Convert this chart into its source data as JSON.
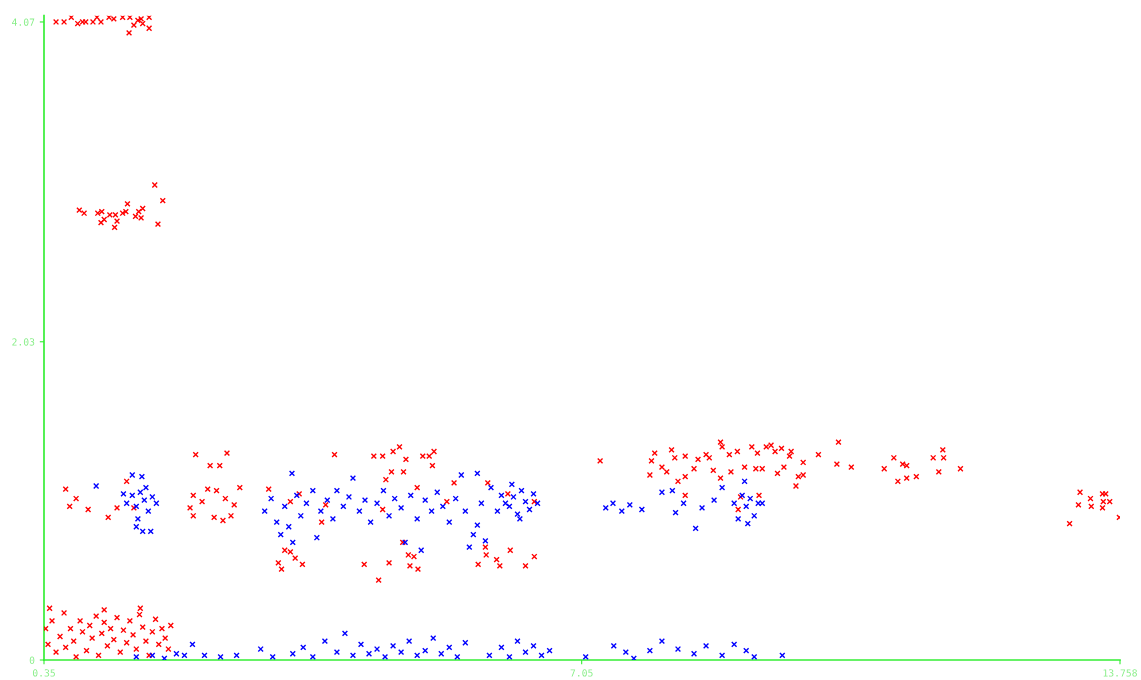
{
  "chart_data": {
    "type": "scatter",
    "marker": "cross",
    "grid": false,
    "legend": false,
    "xlim": [
      0.35,
      13.758
    ],
    "ylim": [
      0,
      4.11
    ],
    "xticks": [
      0.35,
      7.05,
      13.758
    ],
    "yticks": [
      0,
      2.03,
      4.07
    ],
    "series": [
      {
        "color": "#ff0000",
        "x": [
          0.5,
          0.6,
          0.69,
          0.77,
          0.83,
          0.87,
          0.96,
          1.01,
          1.06,
          1.16,
          1.22,
          1.33,
          1.42,
          1.41,
          1.47,
          1.52,
          1.56,
          1.58,
          1.66,
          1.66,
          0.79,
          0.85,
          1.02,
          1.06,
          1.07,
          1.1,
          1.17,
          1.23,
          1.24,
          1.26,
          1.33,
          1.37,
          1.39,
          1.49,
          1.53,
          1.56,
          1.58,
          1.73,
          1.83,
          1.77,
          0.62,
          0.75,
          0.67,
          0.9,
          1.15,
          1.26,
          1.38,
          1.47,
          2.24,
          2.42,
          2.54,
          2.63,
          2.17,
          2.21,
          2.21,
          2.32,
          2.39,
          2.47,
          2.5,
          2.58,
          2.61,
          2.68,
          2.72,
          2.79,
          3.15,
          3.35,
          3.42,
          3.27,
          3.31,
          3.57,
          3.48,
          3.42,
          3.53,
          3.81,
          3.97,
          3.86,
          4.34,
          4.52,
          4.46,
          4.57,
          4.7,
          4.78,
          4.86,
          4.83,
          4.68,
          4.61,
          4.65,
          4.89,
          4.91,
          5.01,
          4.96,
          4.82,
          5.0,
          5.07,
          5.15,
          5.21,
          5.19,
          4.57,
          5.37,
          5.46,
          5.76,
          5.86,
          5.99,
          6.03,
          6.16,
          6.35,
          6.46,
          5.88,
          6.13,
          6.46,
          5.85,
          7.28,
          7.96,
          7.92,
          7.9,
          8.05,
          8.17,
          8.21,
          8.11,
          8.25,
          8.34,
          8.34,
          8.45,
          8.5,
          8.6,
          8.64,
          8.69,
          8.78,
          8.8,
          8.78,
          8.89,
          8.91,
          8.99,
          9.08,
          9.17,
          9.24,
          9.22,
          9.3,
          9.35,
          9.41,
          9.46,
          9.54,
          9.49,
          9.57,
          9.64,
          9.66,
          9.72,
          9.75,
          9.81,
          9.81,
          10.0,
          10.23,
          10.25,
          10.41,
          10.82,
          10.94,
          10.99,
          11.05,
          11.1,
          11.1,
          11.22,
          11.43,
          11.5,
          11.55,
          11.56,
          11.77,
          8.34,
          9.26,
          9.03,
          9.0,
          13.13,
          13.24,
          13.26,
          13.39,
          13.4,
          13.54,
          13.58,
          13.63,
          13.55,
          13.54,
          13.75,
          0.37,
          0.4,
          0.45,
          0.5,
          0.55,
          0.6,
          0.62,
          0.68,
          0.72,
          0.75,
          0.8,
          0.83,
          0.88,
          0.92,
          0.95,
          1.0,
          1.03,
          1.07,
          1.1,
          1.14,
          1.18,
          1.22,
          1.26,
          1.3,
          1.34,
          1.38,
          1.42,
          1.46,
          1.5,
          1.54,
          1.58,
          1.62,
          1.66,
          1.7,
          1.74,
          1.78,
          1.82,
          1.86,
          1.9,
          1.93,
          0.42,
          1.1,
          1.55
        ],
        "values": [
          4.07,
          4.07,
          4.1,
          4.06,
          4.07,
          4.07,
          4.07,
          4.1,
          4.07,
          4.1,
          4.09,
          4.1,
          4.1,
          4.0,
          4.05,
          4.08,
          4.09,
          4.06,
          4.1,
          4.03,
          2.87,
          2.85,
          2.85,
          2.79,
          2.86,
          2.81,
          2.84,
          2.76,
          2.84,
          2.8,
          2.85,
          2.86,
          2.91,
          2.83,
          2.86,
          2.82,
          2.88,
          3.03,
          2.93,
          2.78,
          1.09,
          1.03,
          0.98,
          0.96,
          0.91,
          0.97,
          1.14,
          0.97,
          1.31,
          1.24,
          1.24,
          1.32,
          0.97,
          0.92,
          1.05,
          1.01,
          1.09,
          0.91,
          1.08,
          0.89,
          1.03,
          0.92,
          0.99,
          1.1,
          1.09,
          0.7,
          0.69,
          0.62,
          0.58,
          0.61,
          0.65,
          1.01,
          1.06,
          0.88,
          1.31,
          0.99,
          0.61,
          0.51,
          1.3,
          1.3,
          1.33,
          1.36,
          1.28,
          1.2,
          1.2,
          1.15,
          0.62,
          0.67,
          0.6,
          0.58,
          0.66,
          0.75,
          1.1,
          1.3,
          1.3,
          1.33,
          1.24,
          0.96,
          1.01,
          1.13,
          0.61,
          0.67,
          0.64,
          0.6,
          0.7,
          0.6,
          0.66,
          1.13,
          1.06,
          1.01,
          0.72,
          1.27,
          1.32,
          1.27,
          1.18,
          1.23,
          1.34,
          1.29,
          1.2,
          1.14,
          1.3,
          1.17,
          1.22,
          1.28,
          1.31,
          1.29,
          1.21,
          1.39,
          1.36,
          1.16,
          1.31,
          1.2,
          1.33,
          1.23,
          1.36,
          1.32,
          1.22,
          1.22,
          1.36,
          1.37,
          1.33,
          1.35,
          1.19,
          1.23,
          1.3,
          1.33,
          1.11,
          1.17,
          1.26,
          1.18,
          1.31,
          1.25,
          1.39,
          1.23,
          1.22,
          1.29,
          1.14,
          1.25,
          1.24,
          1.16,
          1.17,
          1.29,
          1.2,
          1.34,
          1.29,
          1.22,
          1.05,
          1.05,
          1.04,
          0.96,
          0.87,
          0.99,
          1.07,
          1.03,
          0.98,
          1.06,
          1.06,
          1.01,
          1.01,
          0.97,
          0.91,
          0.2,
          0.1,
          0.25,
          0.05,
          0.15,
          0.3,
          0.08,
          0.2,
          0.12,
          0.02,
          0.25,
          0.18,
          0.06,
          0.22,
          0.14,
          0.28,
          0.03,
          0.17,
          0.24,
          0.09,
          0.2,
          0.13,
          0.27,
          0.05,
          0.19,
          0.11,
          0.25,
          0.16,
          0.07,
          0.29,
          0.21,
          0.12,
          0.03,
          0.18,
          0.26,
          0.1,
          0.2,
          0.14,
          0.07,
          0.22,
          0.33,
          0.32,
          0.33
        ]
      },
      {
        "color": "#0000ff",
        "x": [
          1.38,
          1.45,
          1.5,
          1.55,
          1.6,
          1.65,
          1.7,
          1.52,
          1.58,
          1.45,
          1.75,
          1.34,
          1.62,
          1.5,
          1.0,
          1.57,
          1.68,
          3.1,
          3.18,
          3.25,
          3.3,
          3.35,
          3.4,
          3.45,
          3.5,
          3.55,
          3.62,
          3.7,
          3.75,
          3.8,
          3.88,
          3.95,
          4.0,
          4.08,
          4.15,
          4.2,
          4.28,
          4.35,
          4.42,
          4.5,
          4.58,
          4.65,
          4.72,
          4.8,
          4.85,
          4.92,
          5.0,
          5.05,
          5.1,
          5.18,
          5.25,
          5.32,
          5.4,
          5.48,
          5.55,
          5.6,
          5.65,
          5.7,
          5.75,
          5.8,
          5.85,
          5.92,
          6.0,
          6.05,
          6.1,
          6.15,
          6.2,
          6.25,
          6.3,
          6.35,
          6.4,
          6.45,
          6.5,
          6.18,
          6.28,
          3.44,
          5.75,
          7.35,
          7.44,
          7.55,
          7.65,
          7.8,
          8.05,
          8.18,
          8.22,
          8.32,
          8.47,
          8.55,
          8.7,
          8.8,
          8.95,
          9.0,
          9.05,
          9.1,
          9.15,
          9.2,
          9.25,
          9.08,
          9.3,
          9.12,
          1.5,
          1.7,
          1.85,
          2.0,
          2.1,
          2.2,
          2.35,
          2.55,
          2.75,
          3.05,
          3.2,
          3.45,
          3.58,
          3.7,
          3.85,
          4.0,
          4.1,
          4.2,
          4.3,
          4.4,
          4.5,
          4.6,
          4.7,
          4.8,
          4.9,
          5.0,
          5.1,
          5.2,
          5.3,
          5.4,
          5.5,
          5.6,
          5.9,
          6.05,
          6.15,
          6.25,
          6.35,
          6.45,
          6.55,
          6.65,
          7.1,
          7.45,
          7.6,
          7.7,
          7.9,
          8.05,
          8.25,
          8.45,
          8.6,
          8.8,
          8.95,
          9.1,
          9.2,
          9.55
        ],
        "values": [
          1.0,
          1.05,
          0.98,
          1.07,
          1.02,
          0.95,
          1.04,
          0.9,
          0.82,
          1.18,
          1.0,
          1.06,
          1.1,
          0.85,
          1.11,
          1.17,
          0.82,
          0.95,
          1.03,
          0.88,
          0.8,
          0.98,
          0.85,
          0.75,
          1.05,
          0.92,
          1.0,
          1.08,
          0.78,
          0.95,
          1.02,
          0.9,
          1.08,
          0.98,
          1.04,
          1.16,
          0.95,
          1.02,
          0.88,
          1.0,
          1.08,
          0.92,
          1.03,
          0.97,
          0.75,
          1.05,
          0.9,
          0.7,
          1.02,
          0.95,
          1.07,
          0.98,
          0.88,
          1.03,
          1.18,
          0.95,
          0.72,
          0.8,
          0.86,
          1.0,
          0.76,
          1.1,
          0.95,
          1.05,
          1.0,
          0.98,
          1.04,
          0.93,
          1.08,
          1.01,
          0.96,
          1.06,
          1.0,
          1.12,
          0.9,
          1.19,
          1.19,
          0.97,
          1.0,
          0.95,
          0.99,
          0.96,
          1.07,
          1.08,
          0.94,
          1.0,
          0.84,
          0.97,
          1.02,
          1.1,
          1.0,
          0.9,
          1.05,
          0.98,
          1.03,
          0.92,
          1.0,
          1.14,
          1.0,
          0.87,
          0.02,
          0.03,
          0.01,
          0.04,
          0.03,
          0.1,
          0.03,
          0.02,
          0.03,
          0.07,
          0.02,
          0.04,
          0.08,
          0.02,
          0.12,
          0.05,
          0.17,
          0.03,
          0.1,
          0.04,
          0.07,
          0.02,
          0.09,
          0.05,
          0.12,
          0.03,
          0.06,
          0.14,
          0.04,
          0.08,
          0.02,
          0.11,
          0.03,
          0.08,
          0.02,
          0.12,
          0.05,
          0.09,
          0.03,
          0.06,
          0.02,
          0.09,
          0.05,
          0.01,
          0.06,
          0.12,
          0.07,
          0.04,
          0.09,
          0.03,
          0.1,
          0.06,
          0.02,
          0.03
        ]
      }
    ]
  }
}
